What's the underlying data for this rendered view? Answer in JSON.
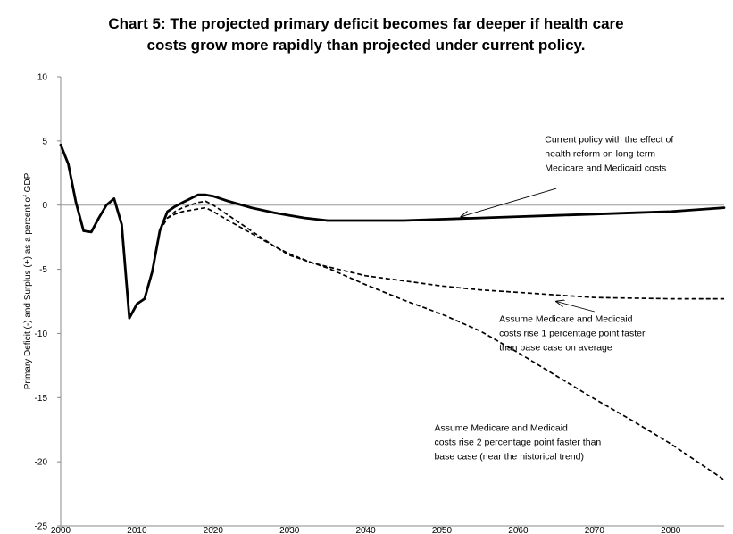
{
  "chart_data": {
    "type": "line",
    "title": [
      "Chart 5:  The projected primary deficit becomes far deeper if health care",
      "costs grow more rapidly than projected under current policy."
    ],
    "xlabel": "",
    "ylabel": "Primary Deficit (-) and Surplus (+) as a percent of GDP",
    "xlim": [
      2000,
      2087
    ],
    "ylim": [
      -25,
      10
    ],
    "x_ticks": [
      2000,
      2010,
      2020,
      2030,
      2040,
      2050,
      2060,
      2070,
      2080
    ],
    "y_ticks": [
      10,
      5,
      0,
      -5,
      -10,
      -15,
      -20,
      -25
    ],
    "grid": false,
    "legend": "none",
    "series": [
      {
        "style": "solid",
        "x": [
          2000,
          2001,
          2002,
          2003,
          2004,
          2005,
          2006,
          2007,
          2008,
          2009,
          2010,
          2011,
          2012,
          2013,
          2014,
          2015,
          2016,
          2017,
          2018,
          2019,
          2020,
          2022,
          2025,
          2028,
          2030,
          2032,
          2035,
          2040,
          2045,
          2050,
          2055,
          2060,
          2065,
          2070,
          2075,
          2080,
          2087
        ],
        "y": [
          4.7,
          3.2,
          0.2,
          -2.0,
          -2.1,
          -1.0,
          0.0,
          0.5,
          -1.5,
          -8.8,
          -7.7,
          -7.3,
          -5.2,
          -2.0,
          -0.5,
          -0.1,
          0.2,
          0.5,
          0.8,
          0.8,
          0.7,
          0.3,
          -0.2,
          -0.6,
          -0.8,
          -1.0,
          -1.2,
          -1.2,
          -1.2,
          -1.1,
          -1.0,
          -0.9,
          -0.8,
          -0.7,
          -0.6,
          -0.5,
          -0.2
        ]
      },
      {
        "style": "dashed",
        "x": [
          2013,
          2014,
          2015,
          2016,
          2017,
          2018,
          2019,
          2020,
          2022,
          2025,
          2028,
          2030,
          2033,
          2035,
          2040,
          2045,
          2050,
          2055,
          2060,
          2065,
          2070,
          2075,
          2080,
          2087
        ],
        "y": [
          -2.0,
          -1.0,
          -0.7,
          -0.5,
          -0.4,
          -0.3,
          -0.2,
          -0.5,
          -1.2,
          -2.2,
          -3.2,
          -3.8,
          -4.5,
          -4.8,
          -5.5,
          -5.9,
          -6.3,
          -6.6,
          -6.8,
          -7.0,
          -7.2,
          -7.25,
          -7.3,
          -7.3
        ]
      },
      {
        "style": "dashed",
        "x": [
          2013,
          2014,
          2015,
          2016,
          2017,
          2018,
          2019,
          2020,
          2022,
          2025,
          2028,
          2030,
          2033,
          2035,
          2040,
          2045,
          2050,
          2055,
          2060,
          2065,
          2070,
          2075,
          2080,
          2087
        ],
        "y": [
          -2.0,
          -1.0,
          -0.5,
          -0.2,
          0.0,
          0.2,
          0.3,
          0.0,
          -0.8,
          -2.0,
          -3.2,
          -3.9,
          -4.5,
          -4.9,
          -6.2,
          -7.4,
          -8.5,
          -9.8,
          -11.5,
          -13.3,
          -15.1,
          -16.8,
          -18.6,
          -21.4
        ]
      }
    ],
    "annotations": [
      {
        "lines": [
          "Current policy with the effect of",
          "health reform on long-term",
          "Medicare and Medicaid costs"
        ],
        "text_at": [
          2063.5,
          4.9
        ],
        "arrow_from": [
          2065,
          1.3
        ],
        "arrow_to": [
          2052.5,
          -0.9
        ]
      },
      {
        "lines": [
          "Assume Medicare and Medicaid",
          "costs rise 1 percentage point faster",
          "than base case on average"
        ],
        "text_at": [
          2057.5,
          -9.1
        ],
        "arrow_from": [
          2070,
          -8.3
        ],
        "arrow_to": [
          2065,
          -7.5
        ]
      },
      {
        "lines": [
          "Assume Medicare and Medicaid",
          "costs rise 2 percentage point faster than",
          "base case (near the historical trend)"
        ],
        "text_at": [
          2049,
          -17.6
        ]
      }
    ]
  }
}
